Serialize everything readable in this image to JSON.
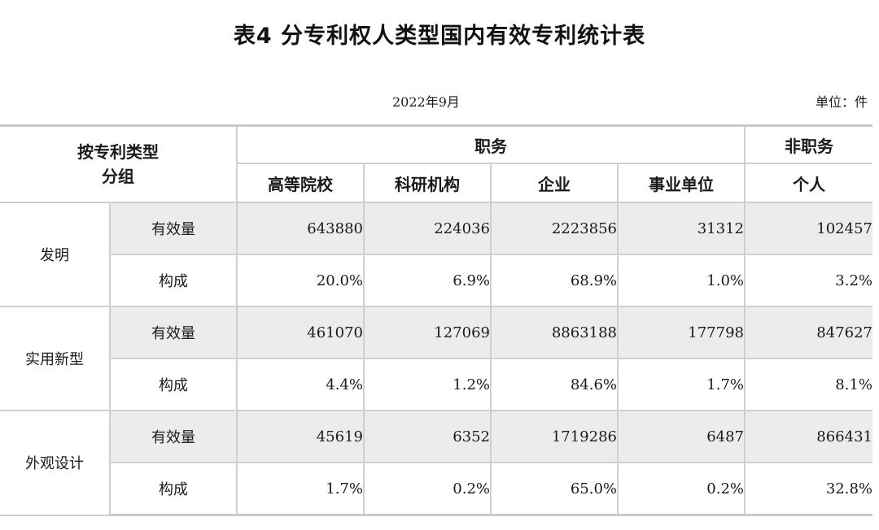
{
  "title": "表4 分专利权人类型国内有效专利统计表",
  "date": "2022年9月",
  "unit": "单位：件",
  "header": {
    "corner_line1": "按专利类型",
    "corner_line2": "分组",
    "service": "职务",
    "non_service": "非职务",
    "columns": [
      "高等院校",
      "科研机构",
      "企业",
      "事业单位",
      "个人"
    ]
  },
  "groups": [
    {
      "name": "发明",
      "rows": [
        {
          "label": "有效量",
          "values": [
            "643880",
            "224036",
            "2223856",
            "31312",
            "102457"
          ]
        },
        {
          "label": "构成",
          "values": [
            "20.0%",
            "6.9%",
            "68.9%",
            "1.0%",
            "3.2%"
          ]
        }
      ]
    },
    {
      "name": "实用新型",
      "rows": [
        {
          "label": "有效量",
          "values": [
            "461070",
            "127069",
            "8863188",
            "177798",
            "847627"
          ]
        },
        {
          "label": "构成",
          "values": [
            "4.4%",
            "1.2%",
            "84.6%",
            "1.7%",
            "8.1%"
          ]
        }
      ]
    },
    {
      "name": "外观设计",
      "rows": [
        {
          "label": "有效量",
          "values": [
            "45619",
            "6352",
            "1719286",
            "6487",
            "866431"
          ]
        },
        {
          "label": "构成",
          "values": [
            "1.7%",
            "0.2%",
            "65.0%",
            "0.2%",
            "32.8%"
          ]
        }
      ]
    }
  ],
  "colors": {
    "shade": "#ececec",
    "border": "#d0d0d0"
  }
}
